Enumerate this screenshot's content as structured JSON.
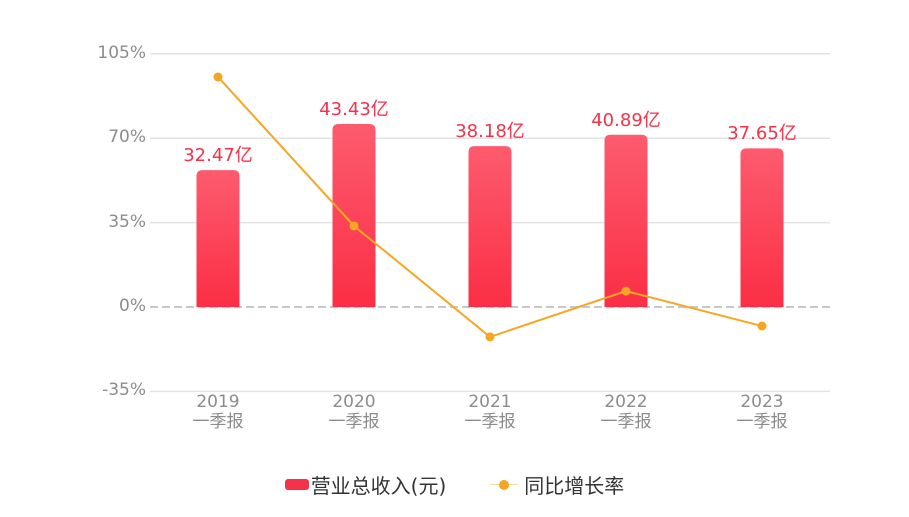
{
  "chart_data": {
    "type": "bar+line",
    "title": "",
    "categories": [
      "2019\n一季报",
      "2020\n一季报",
      "2021\n一季报",
      "2022\n一季报",
      "2023\n一季报"
    ],
    "category_years": [
      "2019",
      "2020",
      "2021",
      "2022",
      "2023"
    ],
    "category_period": "一季报",
    "series": [
      {
        "name": "营业总收入(元)",
        "type": "bar",
        "color": "#f5324a",
        "values": [
          32.47,
          43.43,
          38.18,
          40.89,
          37.65
        ],
        "unit": "亿",
        "labels": [
          "32.47亿",
          "43.43亿",
          "38.18亿",
          "40.89亿",
          "37.65亿"
        ]
      },
      {
        "name": "同比增长率",
        "type": "line",
        "color": "#f5a623",
        "values": [
          95.4,
          33.6,
          -12.4,
          6.6,
          -7.9
        ],
        "unit": "%"
      }
    ],
    "yaxis": {
      "ticks": [
        "105%",
        "70%",
        "35%",
        "0%",
        "-35%"
      ],
      "tick_values": [
        105,
        70,
        35,
        0,
        -35
      ],
      "ylim": [
        -35,
        105
      ]
    },
    "xlabel": "",
    "ylabel": "",
    "grid": true,
    "legend_position": "bottom"
  },
  "legend": {
    "items": [
      {
        "label": "营业总收入(元)",
        "kind": "bar"
      },
      {
        "label": "同比增长率",
        "kind": "line"
      }
    ]
  }
}
